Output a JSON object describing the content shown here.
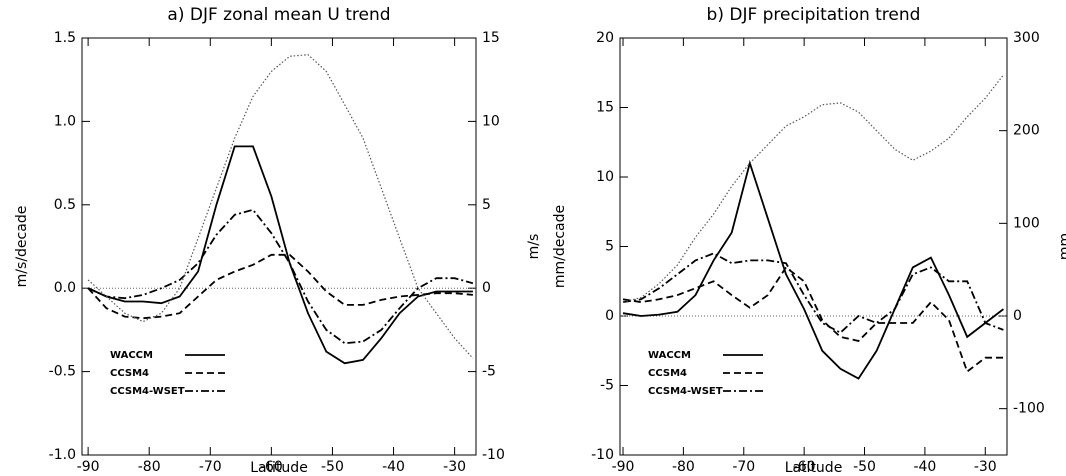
{
  "chart_data": [
    {
      "type": "line",
      "title": "a) DJF zonal mean U trend",
      "xlabel": "Latitude",
      "ylabel": "m/s/decade",
      "y2label": "m/s",
      "x": [
        -90,
        -87,
        -84,
        -81,
        -78,
        -75,
        -72,
        -69,
        -66,
        -63,
        -60,
        -57,
        -54,
        -51,
        -48,
        -45,
        -42,
        -39,
        -36,
        -33,
        -30,
        -27
      ],
      "xlim": [
        -91,
        -26.5
      ],
      "ylim": [
        -1.0,
        1.5
      ],
      "y2lim": [
        -10,
        15
      ],
      "xticks": [
        -90,
        -80,
        -70,
        -60,
        -50,
        -40,
        -30
      ],
      "yticks": [
        {
          "value": -1.0,
          "label": "-1.0"
        },
        {
          "value": -0.5,
          "label": "-0.5"
        },
        {
          "value": 0,
          "label": "0.0"
        },
        0.5,
        {
          "value": 1.0,
          "label": "1.0"
        },
        1.5
      ],
      "y2ticks": [
        -10,
        -5,
        0,
        5,
        10,
        15
      ],
      "zero_line": true,
      "legend": "lower left",
      "series": [
        {
          "name": "WACCM",
          "color": "#000000",
          "dash": "solid",
          "values": [
            0,
            -0.05,
            -0.08,
            -0.08,
            -0.09,
            -0.05,
            0.1,
            0.5,
            0.85,
            0.85,
            0.55,
            0.15,
            -0.15,
            -0.38,
            -0.45,
            -0.43,
            -0.3,
            -0.15,
            -0.05,
            -0.02,
            -0.02,
            -0.02
          ]
        },
        {
          "name": "CCSM4",
          "color": "#000000",
          "dash": "dashed",
          "values": [
            0,
            -0.12,
            -0.17,
            -0.18,
            -0.17,
            -0.15,
            -0.05,
            0.05,
            0.1,
            0.14,
            0.2,
            0.2,
            0.1,
            -0.02,
            -0.1,
            -0.1,
            -0.07,
            -0.05,
            -0.04,
            -0.03,
            -0.03,
            -0.04
          ]
        },
        {
          "name": "CCSM4-WSET",
          "color": "#000000",
          "dash": "dashdot",
          "values": [
            0,
            -0.05,
            -0.06,
            -0.04,
            0,
            0.05,
            0.15,
            0.32,
            0.44,
            0.47,
            0.33,
            0.15,
            -0.08,
            -0.25,
            -0.33,
            -0.32,
            -0.25,
            -0.12,
            0,
            0.06,
            0.06,
            0.03
          ]
        },
        {
          "color": "#555555",
          "dash": "dotted",
          "axis": "y2",
          "values": [
            0.5,
            -0.5,
            -1.5,
            -2,
            -1.5,
            0,
            3,
            6,
            9,
            11.5,
            13,
            13.9,
            14,
            13,
            11,
            9,
            6,
            3,
            0,
            -1.5,
            -3,
            -4.2
          ]
        }
      ]
    },
    {
      "type": "line",
      "title": "b) DJF precipitation trend",
      "xlabel": "Latitude",
      "ylabel": "mm/decade",
      "y2label": "mm",
      "x": [
        -90,
        -87,
        -84,
        -81,
        -78,
        -75,
        -72,
        -69,
        -66,
        -63,
        -60,
        -57,
        -54,
        -51,
        -48,
        -45,
        -42,
        -39,
        -36,
        -33,
        -30,
        -27
      ],
      "xlim": [
        -90.5,
        -26.4
      ],
      "ylim": [
        -10,
        20
      ],
      "y2lim": [
        -150,
        300
      ],
      "xticks": [
        -90,
        -80,
        -70,
        -60,
        -50,
        -40,
        -30
      ],
      "yticks": [
        -10,
        -5,
        0,
        5,
        10,
        15,
        20
      ],
      "y2ticks": [
        -100,
        0,
        100,
        200,
        300
      ],
      "zero_line": true,
      "legend": "lower left",
      "series": [
        {
          "name": "WACCM",
          "color": "#000000",
          "dash": "solid",
          "values": [
            0.2,
            0,
            0.1,
            0.3,
            1.5,
            4,
            6,
            11,
            7,
            3,
            0.5,
            -2.5,
            -3.8,
            -4.5,
            -2.5,
            0.5,
            3.5,
            4.2,
            1.5,
            -1.5,
            -0.5,
            0.5
          ]
        },
        {
          "name": "CCSM4",
          "color": "#000000",
          "dash": "dashed",
          "values": [
            1.2,
            1,
            1.2,
            1.5,
            2,
            2.5,
            1.5,
            0.6,
            1.5,
            3.5,
            2.5,
            -0.3,
            -1.5,
            -1.8,
            -0.5,
            -0.5,
            -0.5,
            1,
            -0.3,
            -4,
            -3,
            -3
          ]
        },
        {
          "name": "CCSM4-WSET",
          "color": "#000000",
          "dash": "dashdot",
          "values": [
            1,
            1.2,
            2,
            3,
            4,
            4.5,
            3.8,
            4,
            4,
            3.8,
            1.5,
            -0.5,
            -1.2,
            0,
            -0.5,
            0.5,
            3,
            3.5,
            2.5,
            2.5,
            -0.5,
            -1
          ]
        },
        {
          "color": "#555555",
          "dash": "dotted",
          "axis": "y2",
          "values": [
            15,
            20,
            35,
            55,
            85,
            110,
            140,
            165,
            185,
            205,
            215,
            228,
            230,
            220,
            200,
            180,
            168,
            178,
            192,
            215,
            235,
            260
          ]
        }
      ]
    }
  ]
}
